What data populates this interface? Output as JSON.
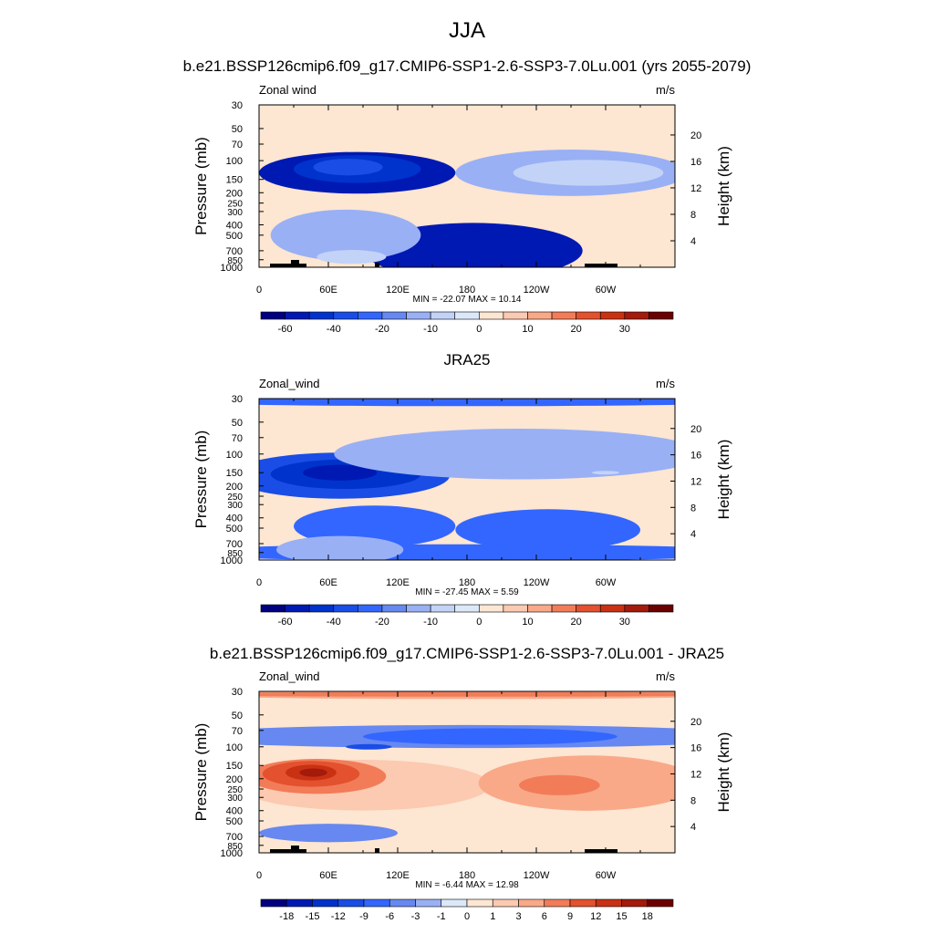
{
  "page": {
    "season": "JJA"
  },
  "chart_data": [
    {
      "type": "heatmap",
      "title": "b.e21.BSSP126cmip6.f09_g17.CMIP6-SSP1-2.6-SSP3-7.0Lu.001 (yrs 2055-2079)",
      "variable": "Zonal wind",
      "units": "m/s",
      "ylabel": "Pressure (mb)",
      "y2label": "Height (km)",
      "x_ticks": [
        "0",
        "60E",
        "120E",
        "180",
        "120W",
        "60W"
      ],
      "y_ticks": [
        "30",
        "50",
        "70",
        "100",
        "150",
        "200",
        "250",
        "300",
        "400",
        "500",
        "700",
        "850",
        "1000"
      ],
      "y2_ticks": [
        "20",
        "16",
        "12",
        "8",
        "4"
      ],
      "stats": "MIN = -22.07  MAX =  10.14",
      "min": -22.07,
      "max": 10.14,
      "colorbar_labels": [
        "-60",
        "-40",
        "-20",
        "-10",
        "0",
        "10",
        "20",
        "30"
      ],
      "palette": "full",
      "regions": [
        {
          "level": 1,
          "lon": 85,
          "p": 130,
          "rx": 85,
          "ry": 0.45
        },
        {
          "level": 2,
          "lon": 85,
          "p": 120,
          "rx": 55,
          "ry": 0.3
        },
        {
          "level": 3,
          "lon": 77,
          "p": 115,
          "rx": 30,
          "ry": 0.18
        },
        {
          "level": 1,
          "lon": 185,
          "p": 700,
          "rx": 95,
          "ry": 0.6
        },
        {
          "level": 6,
          "lon": 270,
          "p": 130,
          "rx": 100,
          "ry": 0.5
        },
        {
          "level": 7,
          "lon": 285,
          "p": 130,
          "rx": 65,
          "ry": 0.28
        },
        {
          "level": 6,
          "lon": 75,
          "p": 500,
          "rx": 65,
          "ry": 0.55
        },
        {
          "level": 7,
          "lon": 80,
          "p": 800,
          "rx": 30,
          "ry": 0.15
        }
      ]
    },
    {
      "type": "heatmap",
      "title": "JRA25",
      "variable": "Zonal_wind",
      "units": "m/s",
      "ylabel": "Pressure (mb)",
      "y2label": "Height (km)",
      "x_ticks": [
        "0",
        "60E",
        "120E",
        "180",
        "120W",
        "60W"
      ],
      "y_ticks": [
        "30",
        "50",
        "70",
        "100",
        "150",
        "200",
        "250",
        "300",
        "400",
        "500",
        "700",
        "850",
        "1000"
      ],
      "y2_ticks": [
        "20",
        "16",
        "12",
        "8",
        "4"
      ],
      "stats": "MIN = -27.45  MAX =   5.59",
      "min": -27.45,
      "max": 5.59,
      "colorbar_labels": [
        "-60",
        "-40",
        "-20",
        "-10",
        "0",
        "10",
        "20",
        "30"
      ],
      "palette": "full",
      "regions": [
        {
          "level": 4,
          "lon": 180,
          "p": 32,
          "rx": 260,
          "ry": 0.1
        },
        {
          "level": 4,
          "lon": 100,
          "p": 480,
          "rx": 70,
          "ry": 0.45
        },
        {
          "level": 4,
          "lon": 250,
          "p": 520,
          "rx": 80,
          "ry": 0.45
        },
        {
          "level": 4,
          "lon": 180,
          "p": 850,
          "rx": 260,
          "ry": 0.18
        },
        {
          "level": 3,
          "lon": 70,
          "p": 160,
          "rx": 95,
          "ry": 0.5
        },
        {
          "level": 2,
          "lon": 75,
          "p": 155,
          "rx": 65,
          "ry": 0.32
        },
        {
          "level": 1,
          "lon": 70,
          "p": 150,
          "rx": 32,
          "ry": 0.17
        },
        {
          "level": 6,
          "lon": 225,
          "p": 100,
          "rx": 160,
          "ry": 0.55
        },
        {
          "level": 7,
          "lon": 300,
          "p": 150,
          "rx": 12,
          "ry": 0.04
        },
        {
          "level": 6,
          "lon": 70,
          "p": 800,
          "rx": 55,
          "ry": 0.3
        }
      ]
    },
    {
      "type": "heatmap",
      "title": "b.e21.BSSP126cmip6.f09_g17.CMIP6-SSP1-2.6-SSP3-7.0Lu.001 - JRA25",
      "variable": "Zonal_wind",
      "units": "m/s",
      "ylabel": "Pressure (mb)",
      "y2label": "Height (km)",
      "x_ticks": [
        "0",
        "60E",
        "120E",
        "180",
        "120W",
        "60W"
      ],
      "y_ticks": [
        "30",
        "50",
        "70",
        "100",
        "150",
        "200",
        "250",
        "300",
        "400",
        "500",
        "700",
        "850",
        "1000"
      ],
      "y2_ticks": [
        "20",
        "16",
        "12",
        "8",
        "4"
      ],
      "stats": "MIN =  -6.44  MAX =  12.98",
      "min": -6.44,
      "max": 12.98,
      "colorbar_labels": [
        "-18",
        "-15",
        "-12",
        "-9",
        "-6",
        "-3",
        "-1",
        "0",
        "1",
        "3",
        "6",
        "9",
        "12",
        "15",
        "18"
      ],
      "palette": "diff",
      "regions": [
        {
          "level": 5,
          "lon": 180,
          "p": 80,
          "rx": 260,
          "ry": 0.25
        },
        {
          "level": 4,
          "lon": 200,
          "p": 80,
          "rx": 110,
          "ry": 0.18
        },
        {
          "level": 3,
          "lon": 95,
          "p": 100,
          "rx": 20,
          "ry": 0.06
        },
        {
          "level": 10,
          "lon": 180,
          "p": 32,
          "rx": 260,
          "ry": 0.1
        },
        {
          "level": 11,
          "lon": 180,
          "p": 32,
          "rx": 260,
          "ry": 0.05
        },
        {
          "level": 9,
          "lon": 90,
          "p": 230,
          "rx": 110,
          "ry": 0.55
        },
        {
          "level": 10,
          "lon": 285,
          "p": 220,
          "rx": 95,
          "ry": 0.6
        },
        {
          "level": 11,
          "lon": 260,
          "p": 230,
          "rx": 35,
          "ry": 0.22
        },
        {
          "level": 11,
          "lon": 50,
          "p": 190,
          "rx": 60,
          "ry": 0.38
        },
        {
          "level": 12,
          "lon": 45,
          "p": 180,
          "rx": 42,
          "ry": 0.28
        },
        {
          "level": 13,
          "lon": 45,
          "p": 175,
          "rx": 22,
          "ry": 0.17
        },
        {
          "level": 14,
          "lon": 47,
          "p": 175,
          "rx": 12,
          "ry": 0.09
        },
        {
          "level": 5,
          "lon": 60,
          "p": 650,
          "rx": 60,
          "ry": 0.2
        }
      ]
    }
  ],
  "colors": {
    "full": [
      "#000080",
      "#0019b3",
      "#0033cc",
      "#1a4de6",
      "#3366ff",
      "#6688f0",
      "#99b0f5",
      "#c2d3f7",
      "#dbe8fa",
      "#fde6d2",
      "#fcc9b1",
      "#f9a988",
      "#f27c58",
      "#e3512e",
      "#c93113",
      "#a41a0b",
      "#6b0000"
    ],
    "diff": [
      "#000080",
      "#0019b3",
      "#0033cc",
      "#1a4de6",
      "#3366ff",
      "#6688f0",
      "#99b0f5",
      "#dbe8fa",
      "#fde6d2",
      "#fcc9b1",
      "#f9a988",
      "#f27c58",
      "#e3512e",
      "#c93113",
      "#a41a0b",
      "#6b0000"
    ],
    "full_base": 9,
    "diff_base": 8,
    "diff_neutral": 7,
    "topography": "#000000"
  }
}
